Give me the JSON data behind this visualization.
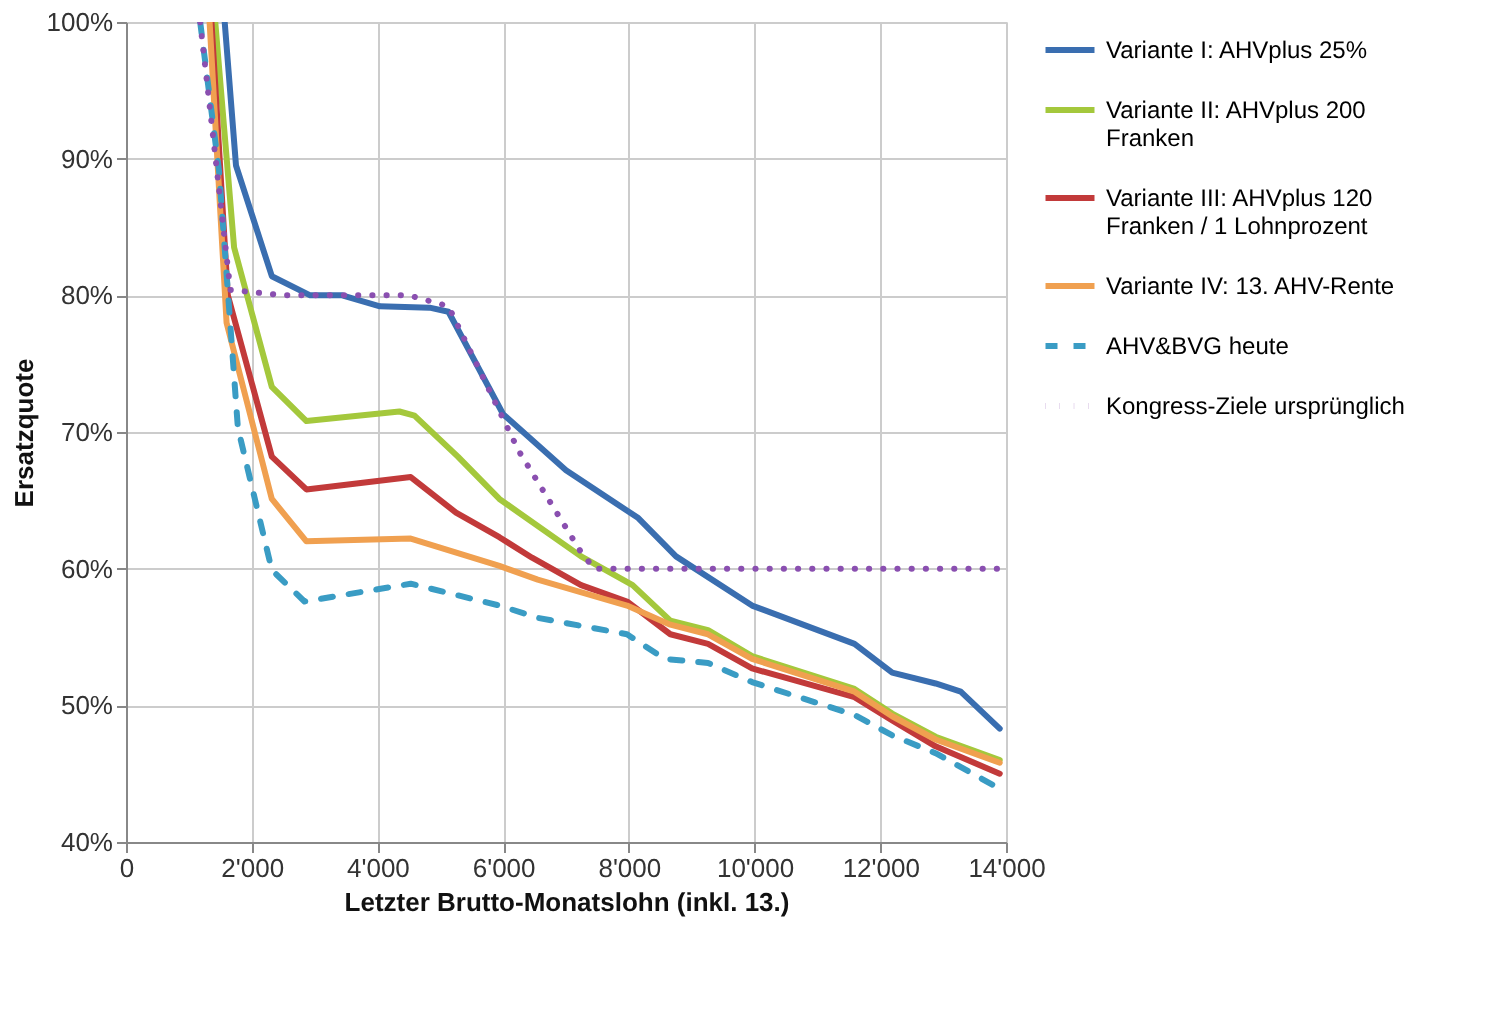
{
  "chart_data": {
    "type": "line",
    "xlabel": "Letzter Brutto-Monatslohn (inkl. 13.)",
    "ylabel": "Ersatzquote",
    "xlim": [
      0,
      14000
    ],
    "ylim": [
      40,
      100
    ],
    "xticks": [
      0,
      {
        "value": 2000,
        "label": "2'000"
      },
      {
        "value": 4000,
        "label": "4'000"
      },
      {
        "value": 6000,
        "label": "6'000"
      },
      {
        "value": 8000,
        "label": "8'000"
      },
      {
        "value": 10000,
        "label": "10'000"
      },
      {
        "value": 12000,
        "label": "12'000"
      },
      {
        "value": 14000,
        "label": "14'000"
      }
    ],
    "yticks": [
      {
        "value": 40,
        "label": "40%"
      },
      {
        "value": 50,
        "label": "50%"
      },
      {
        "value": 60,
        "label": "60%"
      },
      {
        "value": 70,
        "label": "70%"
      },
      {
        "value": 80,
        "label": "80%"
      },
      {
        "value": 90,
        "label": "90%"
      },
      {
        "value": 100,
        "label": "100%"
      }
    ],
    "grid": true,
    "legend": "right",
    "marker": "none",
    "series": [
      {
        "name": "Variante I: AHVplus 25%",
        "color": "#3a6eb0",
        "line_style": "solid",
        "x": [
          1570,
          1750,
          2320,
          2930,
          3440,
          4040,
          4830,
          5130,
          6000,
          7000,
          8150,
          8750,
          9960,
          11590,
          12190,
          12880,
          13280,
          13900
        ],
        "values": [
          100,
          89.5,
          81.4,
          80,
          80,
          79.2,
          79.1,
          78.8,
          71.3,
          67.2,
          63.7,
          60.9,
          57.3,
          54.5,
          52.4,
          51.6,
          51.0,
          48.3
        ]
      },
      {
        "name": "Variante II: AHVplus 200 Franken",
        "color": "#a4c83c",
        "line_style": "solid",
        "x": [
          1420,
          1720,
          2320,
          2870,
          4350,
          4590,
          5280,
          5940,
          7240,
          8060,
          8660,
          9260,
          9960,
          11590,
          12190,
          12880,
          13900
        ],
        "values": [
          100,
          83.5,
          73.3,
          70.8,
          71.5,
          71.2,
          68.2,
          65.1,
          60.9,
          58.8,
          56.2,
          55.5,
          53.6,
          51.2,
          49.4,
          47.7,
          46.0
        ]
      },
      {
        "name": "Variante III: AHVplus 120 Franken / 1 Lohnprozent",
        "color": "#c23a3a",
        "line_style": "solid",
        "x": [
          1360,
          1620,
          2320,
          2870,
          4530,
          5250,
          5940,
          6460,
          7240,
          7970,
          8660,
          9260,
          9960,
          11590,
          12190,
          12880,
          13900
        ],
        "values": [
          100,
          80,
          68.2,
          65.8,
          66.7,
          64.1,
          62.3,
          60.8,
          58.8,
          57.6,
          55.2,
          54.5,
          52.7,
          50.6,
          48.9,
          47.0,
          45.0
        ]
      },
      {
        "name": "Variante IV: 13. AHV-Rente",
        "color": "#f0a050",
        "line_style": "solid",
        "x": [
          1330,
          1600,
          2320,
          2870,
          4530,
          5940,
          6550,
          7970,
          8660,
          9260,
          9960,
          11590,
          12190,
          12880,
          13900
        ],
        "values": [
          100,
          78,
          65.1,
          62.0,
          62.2,
          60.2,
          59.2,
          57.3,
          55.9,
          55.2,
          53.4,
          51.0,
          49.2,
          47.5,
          45.8
        ]
      },
      {
        "name": "AHV&BVG heute",
        "color": "#3a9cc4",
        "line_style": "dashed",
        "x": [
          1180,
          1480,
          1780,
          2320,
          2840,
          4530,
          5940,
          6550,
          7970,
          8570,
          9260,
          9960,
          11590,
          12190,
          12880,
          13900
        ],
        "values": [
          100,
          89.1,
          70.3,
          59.9,
          57.6,
          58.9,
          57.3,
          56.4,
          55.2,
          53.4,
          53.1,
          51.7,
          49.3,
          47.8,
          46.5,
          43.9
        ]
      },
      {
        "name": "Kongress-Ziele ursprünglich",
        "color": "#8a4fb0",
        "line_style": "dotted",
        "x": [
          1180,
          1660,
          2500,
          4500,
          5130,
          6250,
          7240,
          7450,
          13900
        ],
        "values": [
          100,
          80.4,
          80,
          80,
          79.2,
          68.6,
          61.2,
          60,
          60
        ]
      }
    ]
  }
}
